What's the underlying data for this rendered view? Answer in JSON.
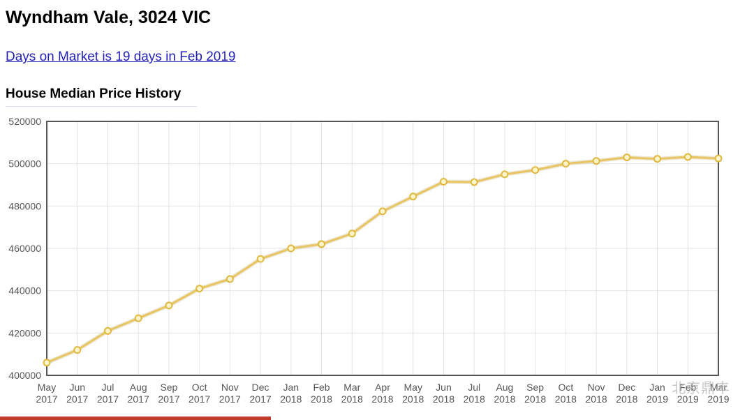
{
  "page": {
    "title": "Wyndham Vale, 3024 VIC",
    "dom_link": "Days on Market is 19 days in Feb 2019",
    "section_heading": "House Median Price History"
  },
  "colors": {
    "line": "#e8c560",
    "marker_fill": "#fff5c8",
    "marker_stroke": "#e0b840",
    "grid": "#e2e2ea",
    "border": "#555555",
    "link": "#2222b8",
    "accent_bar": "#c0392b"
  },
  "chart_data": {
    "type": "line",
    "title": "House Median Price History",
    "xlabel": "",
    "ylabel": "",
    "ylim": [
      400000,
      520000
    ],
    "yticks": [
      "520000",
      "500000",
      "480000",
      "460000",
      "440000",
      "420000",
      "400000"
    ],
    "grid": true,
    "legend": "none",
    "categories": [
      [
        "May",
        "2017"
      ],
      [
        "Jun",
        "2017"
      ],
      [
        "Jul",
        "2017"
      ],
      [
        "Aug",
        "2017"
      ],
      [
        "Sep",
        "2017"
      ],
      [
        "Oct",
        "2017"
      ],
      [
        "Nov",
        "2017"
      ],
      [
        "Dec",
        "2017"
      ],
      [
        "Jan",
        "2018"
      ],
      [
        "Feb",
        "2018"
      ],
      [
        "Mar",
        "2018"
      ],
      [
        "Apr",
        "2018"
      ],
      [
        "May",
        "2018"
      ],
      [
        "Jun",
        "2018"
      ],
      [
        "Jul",
        "2018"
      ],
      [
        "Aug",
        "2018"
      ],
      [
        "Sep",
        "2018"
      ],
      [
        "Oct",
        "2018"
      ],
      [
        "Nov",
        "2018"
      ],
      [
        "Dec",
        "2018"
      ],
      [
        "Jan",
        "2019"
      ],
      [
        "Feb",
        "2019"
      ],
      [
        "Mar",
        "2019"
      ]
    ],
    "series": [
      {
        "values": [
          406000,
          412000,
          421000,
          427000,
          433000,
          441000,
          445500,
          455000,
          460000,
          462000,
          467000,
          477500,
          484500,
          491500,
          491300,
          495000,
          497000,
          500000,
          501300,
          503000,
          502300,
          503200,
          502500
        ]
      }
    ]
  },
  "watermark": "北京鼎丰"
}
